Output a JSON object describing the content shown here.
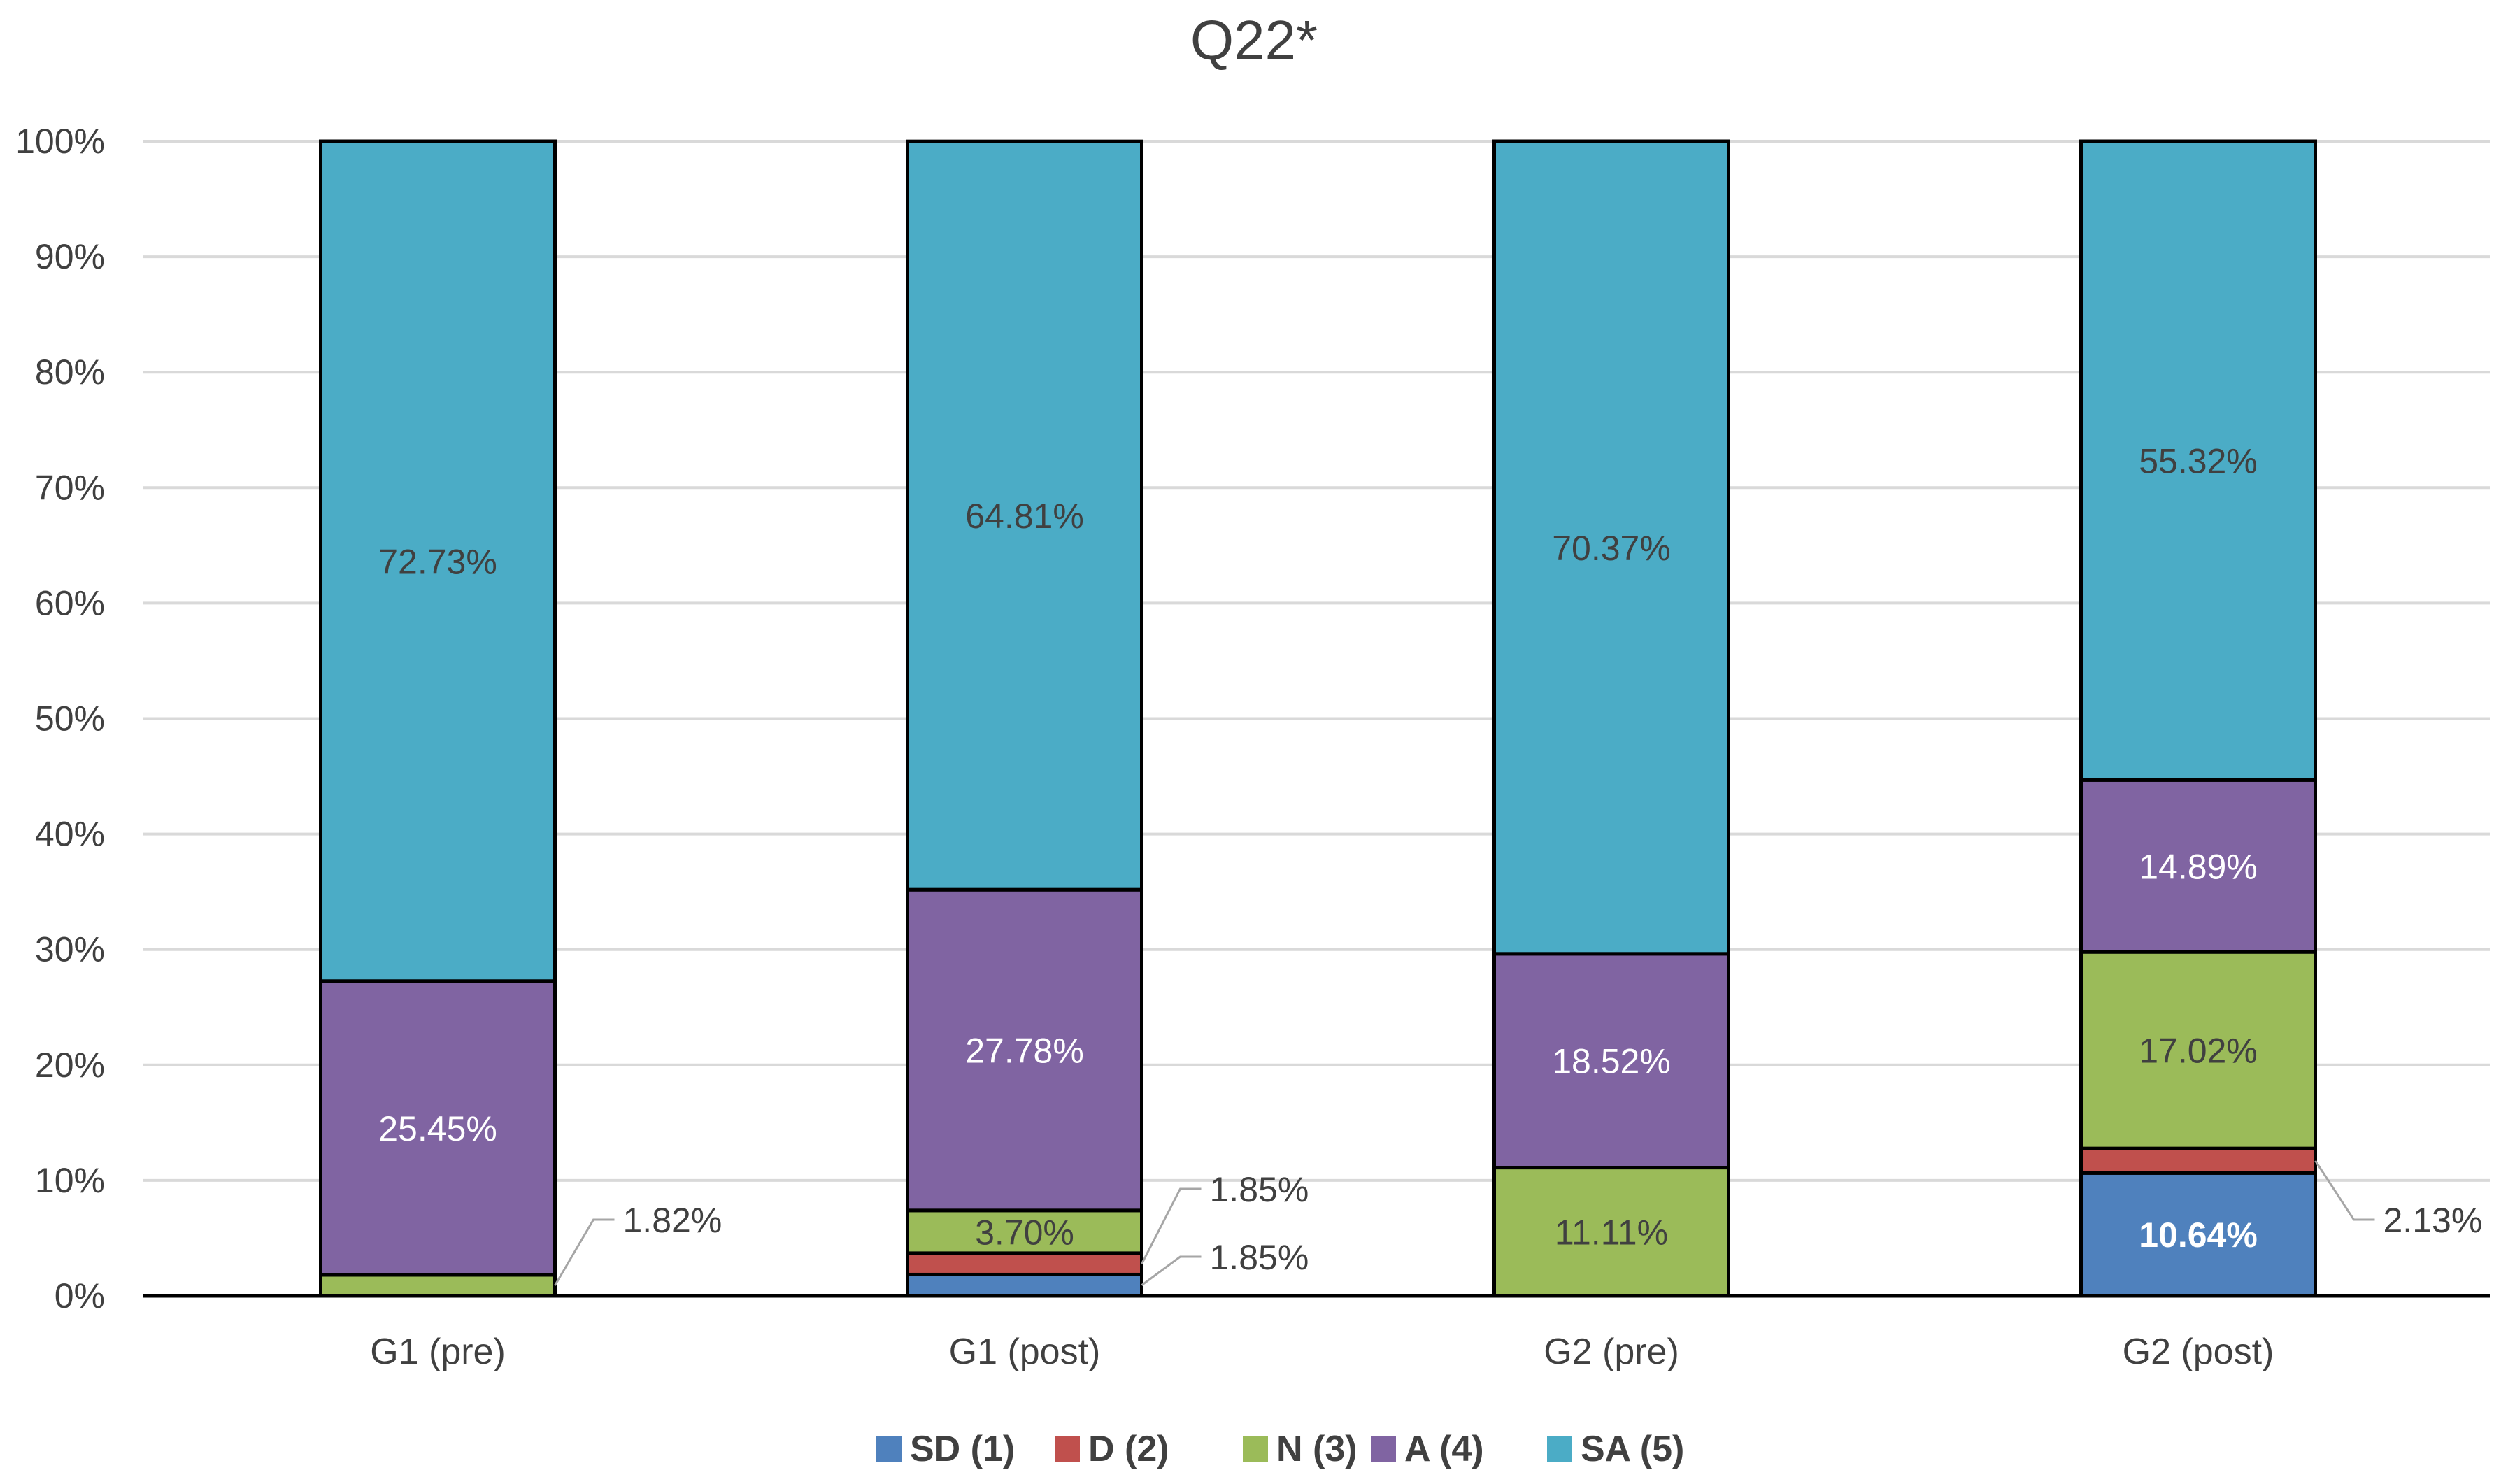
{
  "chart_data": {
    "type": "bar",
    "stacked": true,
    "title": "Q22*",
    "xlabel": "",
    "ylabel": "",
    "ylim": [
      0,
      100
    ],
    "y_ticks": [
      "0%",
      "10%",
      "20%",
      "30%",
      "40%",
      "50%",
      "60%",
      "70%",
      "80%",
      "90%",
      "100%"
    ],
    "grid": true,
    "legend_position": "bottom",
    "categories": [
      "G1 (pre)",
      "G1 (post)",
      "G2 (pre)",
      "G2 (post)"
    ],
    "series": [
      {
        "name": "SD (1)",
        "color": "#4f81bd",
        "values": [
          0,
          1.85,
          0,
          10.64
        ],
        "labels": [
          "",
          "1.85%",
          "",
          "10.64%"
        ]
      },
      {
        "name": "D (2)",
        "color": "#c0504d",
        "values": [
          0,
          1.85,
          0,
          2.13
        ],
        "labels": [
          "",
          "1.85%",
          "",
          "2.13%"
        ]
      },
      {
        "name": "N (3)",
        "color": "#9bbb59",
        "values": [
          1.82,
          3.7,
          11.11,
          17.02
        ],
        "labels": [
          "1.82%",
          "3.70%",
          "11.11%",
          "17.02%"
        ]
      },
      {
        "name": "A (4)",
        "color": "#8064a2",
        "values": [
          25.45,
          27.78,
          18.52,
          14.89
        ],
        "labels": [
          "25.45%",
          "27.78%",
          "18.52%",
          "14.89%"
        ]
      },
      {
        "name": "SA (5)",
        "color": "#4bacc6",
        "values": [
          72.73,
          64.81,
          70.37,
          55.32
        ],
        "labels": [
          "72.73%",
          "64.81%",
          "70.37%",
          "55.32%"
        ]
      }
    ]
  }
}
